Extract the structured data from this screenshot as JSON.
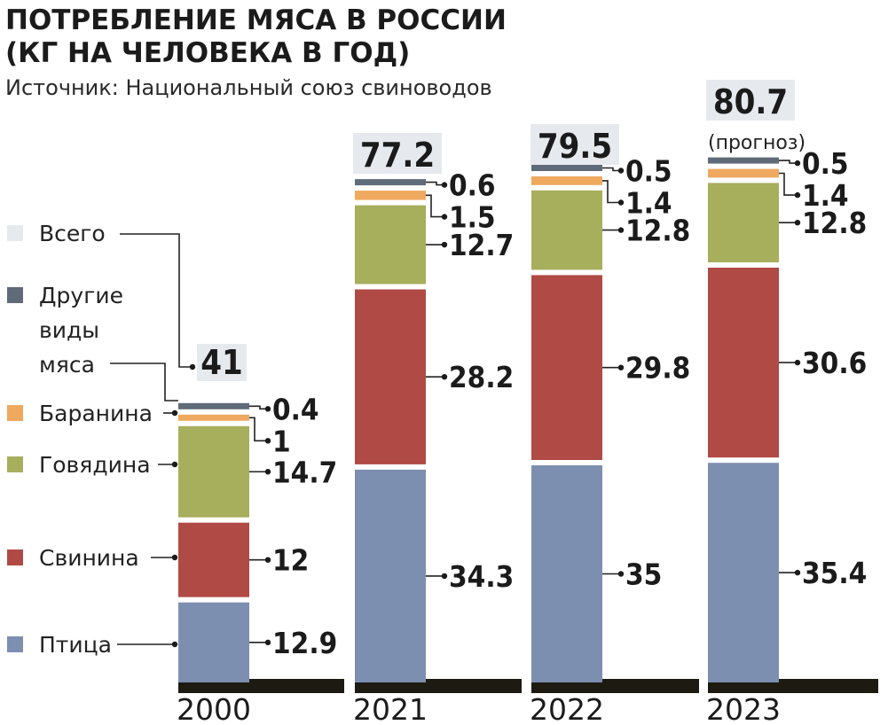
{
  "chart_data": {
    "type": "bar",
    "stacked": true,
    "title": "ПОТРЕБЛЕНИЕ МЯСА В РОССИИ\n(КГ НА ЧЕЛОВЕКА В ГОД)",
    "subtitle": "Источник: Национальный союз свиноводов",
    "categories": [
      "2000",
      "2021",
      "2022",
      "2023"
    ],
    "series": [
      {
        "name": "Птица",
        "color": "#7d8fb0",
        "values": [
          12.9,
          34.3,
          35,
          35.4
        ]
      },
      {
        "name": "Свинина",
        "color": "#b04a45",
        "values": [
          12,
          28.2,
          29.8,
          30.6
        ]
      },
      {
        "name": "Говядина",
        "color": "#a7ae5c",
        "values": [
          14.7,
          12.7,
          12.8,
          12.8
        ]
      },
      {
        "name": "Баранина",
        "color": "#eea95f",
        "values": [
          1,
          1.5,
          1.4,
          1.4
        ]
      },
      {
        "name": "Другие виды мяса",
        "color": "#5f6b78",
        "values": [
          0.4,
          0.6,
          0.5,
          0.5
        ]
      }
    ],
    "value_labels": [
      [
        "12.9",
        "12",
        "14.7",
        "1",
        "0.4"
      ],
      [
        "34.3",
        "28.2",
        "12.7",
        "1.5",
        "0.6"
      ],
      [
        "35",
        "29.8",
        "12.8",
        "1.4",
        "0.5"
      ],
      [
        "35.4",
        "30.6",
        "12.8",
        "1.4",
        "0.5"
      ]
    ],
    "totals": [
      "41",
      "77.2",
      "79.5",
      "80.7"
    ],
    "total_notes": [
      "",
      "",
      "",
      "(прогноз)"
    ],
    "legend": {
      "total_label": "Всего",
      "total_color": "#e6eaef",
      "items": [
        {
          "label": "Птица",
          "color": "#7d8fb0"
        },
        {
          "label": "Свинина",
          "color": "#b04a45"
        },
        {
          "label": "Говядина",
          "color": "#a7ae5c"
        },
        {
          "label": "Баранина",
          "color": "#eea95f"
        },
        {
          "label_lines": [
            "Другие",
            "виды",
            "мяса"
          ],
          "color": "#5f6b78"
        }
      ]
    },
    "legend_placement": "left",
    "ylim": [
      0,
      85
    ],
    "grid": false,
    "baseline_color": "#1d1a12"
  }
}
